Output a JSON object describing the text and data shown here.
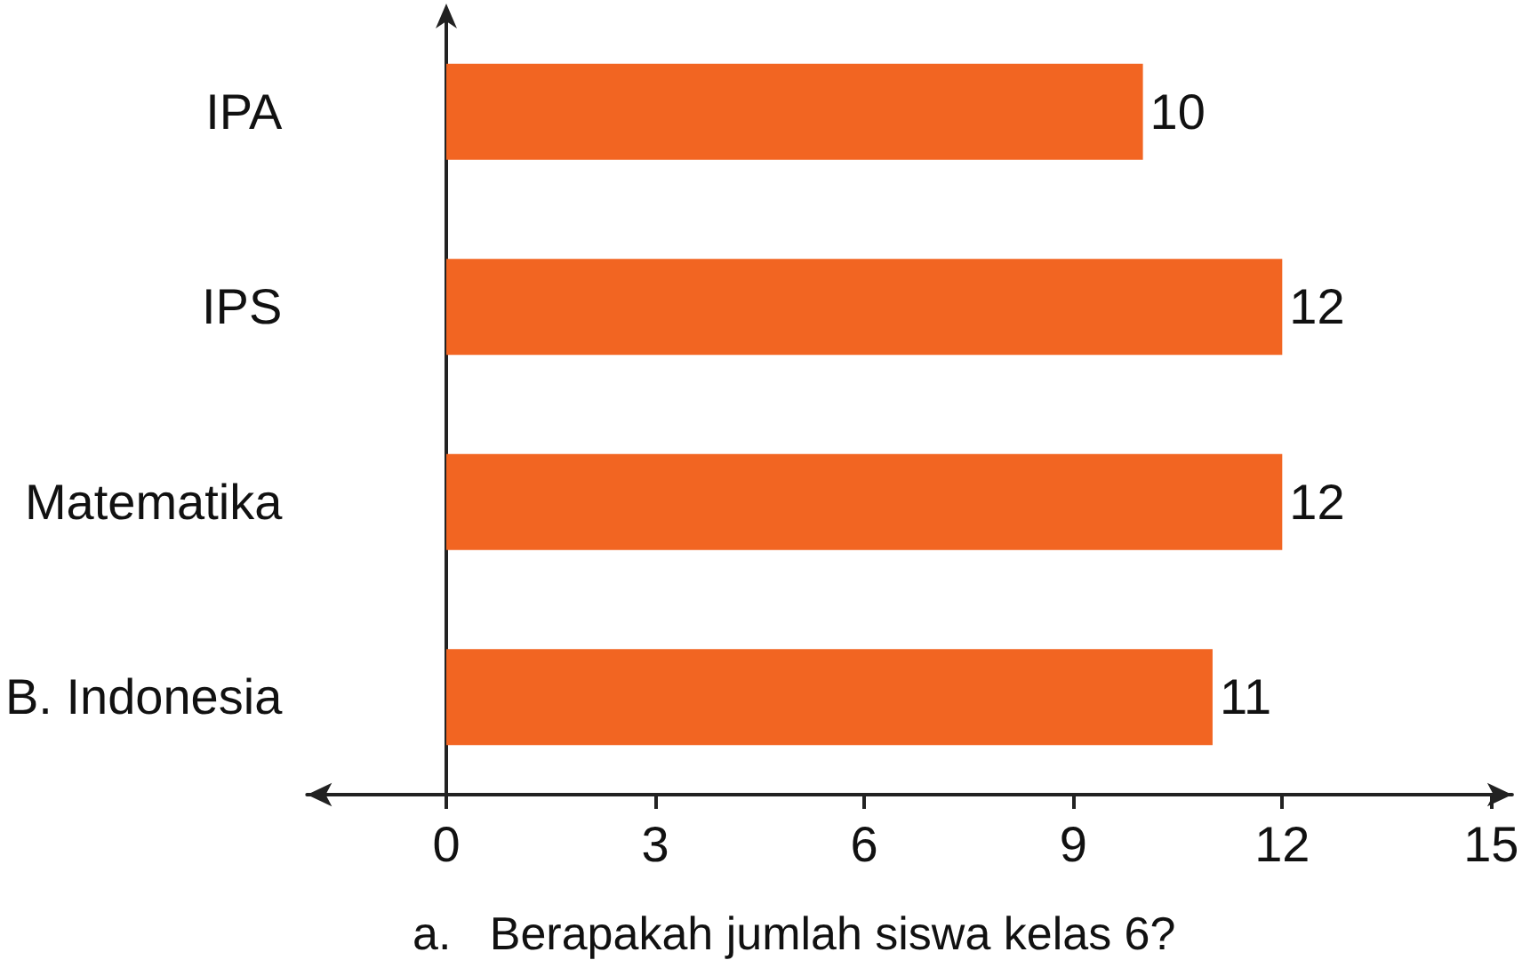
{
  "chart_data": {
    "type": "bar",
    "orientation": "horizontal",
    "categories": [
      "IPA",
      "IPS",
      "Matematika",
      "B. Indonesia"
    ],
    "values": [
      10,
      12,
      12,
      11
    ],
    "color": "#f26522",
    "xlim": [
      -2,
      15.3
    ],
    "xticks": [
      0,
      3,
      6,
      9,
      12,
      15
    ],
    "data_labels": true,
    "annotations": [
      "a.   Berapakah jumlah siswa kelas 6?"
    ]
  }
}
